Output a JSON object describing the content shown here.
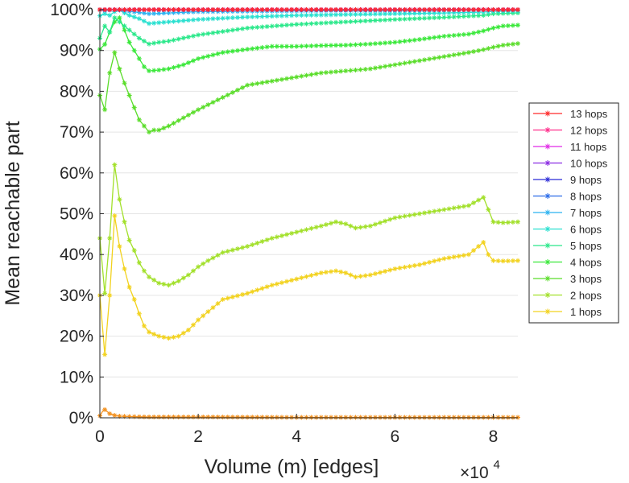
{
  "chart_data": {
    "type": "line",
    "title": "",
    "xlabel": "Volume (m) [edges]",
    "ylabel": "Mean reachable part",
    "x_multiplier_label": "×10",
    "x_multiplier_exponent": "4",
    "xlim": [
      0,
      85000
    ],
    "ylim": [
      0,
      100
    ],
    "x_ticks": [
      0,
      20000,
      40000,
      60000,
      80000
    ],
    "x_tick_labels": [
      "0",
      "2",
      "4",
      "6",
      "8"
    ],
    "y_ticks": [
      0,
      10,
      20,
      30,
      40,
      50,
      60,
      70,
      80,
      90,
      100
    ],
    "y_tick_labels": [
      "0%",
      "10%",
      "20%",
      "30%",
      "40%",
      "50%",
      "60%",
      "70%",
      "80%",
      "90%",
      "100%"
    ],
    "grid": true,
    "legend_position": "right",
    "marker": "asterisk",
    "series": [
      {
        "name": "13 hops",
        "color": "#ff2a2a",
        "points": [
          [
            0,
            100
          ],
          [
            85000,
            100
          ]
        ]
      },
      {
        "name": "12 hops",
        "color": "#ff2f8c",
        "points": [
          [
            0,
            100
          ],
          [
            85000,
            100
          ]
        ]
      },
      {
        "name": "11 hops",
        "color": "#e02ae6",
        "points": [
          [
            0,
            100
          ],
          [
            85000,
            100
          ]
        ]
      },
      {
        "name": "10 hops",
        "color": "#8a2be2",
        "points": [
          [
            0,
            100
          ],
          [
            85000,
            100
          ]
        ]
      },
      {
        "name": "9 hops",
        "color": "#2a2ad6",
        "points": [
          [
            0,
            100
          ],
          [
            85000,
            100
          ]
        ]
      },
      {
        "name": "8 hops",
        "color": "#2a6be8",
        "points": [
          [
            0,
            100
          ],
          [
            3000,
            100
          ],
          [
            85000,
            100
          ]
        ]
      },
      {
        "name": "7 hops",
        "color": "#2ab2f0",
        "points": [
          [
            0,
            100
          ],
          [
            1000,
            99.8
          ],
          [
            3000,
            100
          ],
          [
            6000,
            99.6
          ],
          [
            10000,
            99
          ],
          [
            14000,
            99.2
          ],
          [
            20000,
            99.5
          ],
          [
            30000,
            99.6
          ],
          [
            40000,
            99.7
          ],
          [
            50000,
            99.8
          ],
          [
            60000,
            99.8
          ],
          [
            70000,
            99.9
          ],
          [
            85000,
            100
          ]
        ]
      },
      {
        "name": "6 hops",
        "color": "#2ae0d0",
        "points": [
          [
            0,
            98.5
          ],
          [
            1000,
            99
          ],
          [
            2000,
            98.6
          ],
          [
            3000,
            99.5
          ],
          [
            4000,
            100
          ],
          [
            5000,
            99.2
          ],
          [
            6000,
            98.6
          ],
          [
            8000,
            97.8
          ],
          [
            10000,
            96.6
          ],
          [
            12000,
            96.8
          ],
          [
            16000,
            97.2
          ],
          [
            20000,
            97.6
          ],
          [
            30000,
            98.2
          ],
          [
            40000,
            98.6
          ],
          [
            50000,
            98.8
          ],
          [
            60000,
            99
          ],
          [
            70000,
            99.2
          ],
          [
            78000,
            99.4
          ],
          [
            80000,
            99.6
          ],
          [
            85000,
            99.7
          ]
        ]
      },
      {
        "name": "5 hops",
        "color": "#2ae88a",
        "points": [
          [
            0,
            93
          ],
          [
            1000,
            96
          ],
          [
            2000,
            94.5
          ],
          [
            3000,
            98
          ],
          [
            4000,
            97
          ],
          [
            5000,
            96
          ],
          [
            6000,
            95
          ],
          [
            8000,
            93
          ],
          [
            10000,
            91.6
          ],
          [
            12000,
            92
          ],
          [
            14000,
            92.3
          ],
          [
            20000,
            93.8
          ],
          [
            30000,
            95.5
          ],
          [
            40000,
            96.4
          ],
          [
            50000,
            97
          ],
          [
            60000,
            97.6
          ],
          [
            70000,
            98.1
          ],
          [
            78000,
            98.6
          ],
          [
            80000,
            99
          ],
          [
            85000,
            99.2
          ]
        ]
      },
      {
        "name": "4 hops",
        "color": "#3ae83a",
        "points": [
          [
            0,
            90.3
          ],
          [
            1000,
            91.5
          ],
          [
            2000,
            94.5
          ],
          [
            3000,
            97
          ],
          [
            4000,
            98
          ],
          [
            5000,
            95
          ],
          [
            6000,
            92
          ],
          [
            7000,
            90
          ],
          [
            8000,
            88
          ],
          [
            9000,
            86
          ],
          [
            10000,
            85
          ],
          [
            12000,
            85.2
          ],
          [
            14000,
            85.5
          ],
          [
            17000,
            86.5
          ],
          [
            20000,
            88
          ],
          [
            25000,
            89.5
          ],
          [
            30000,
            90.3
          ],
          [
            35000,
            91
          ],
          [
            40000,
            91
          ],
          [
            45000,
            91.2
          ],
          [
            50000,
            91.3
          ],
          [
            55000,
            91.6
          ],
          [
            60000,
            92
          ],
          [
            65000,
            92.7
          ],
          [
            70000,
            93.5
          ],
          [
            75000,
            94
          ],
          [
            78000,
            94.8
          ],
          [
            80000,
            95.5
          ],
          [
            82000,
            96
          ],
          [
            85000,
            96.2
          ]
        ]
      },
      {
        "name": "3 hops",
        "color": "#5add2a",
        "points": [
          [
            0,
            79
          ],
          [
            1000,
            75.5
          ],
          [
            2000,
            84.5
          ],
          [
            3000,
            89.5
          ],
          [
            4000,
            85.5
          ],
          [
            5000,
            82
          ],
          [
            6000,
            79
          ],
          [
            7000,
            76
          ],
          [
            8000,
            73
          ],
          [
            9000,
            71.5
          ],
          [
            10000,
            70
          ],
          [
            11000,
            70.5
          ],
          [
            12000,
            70.5
          ],
          [
            14000,
            71.5
          ],
          [
            17000,
            73.5
          ],
          [
            20000,
            75.5
          ],
          [
            25000,
            78.5
          ],
          [
            30000,
            81.5
          ],
          [
            35000,
            82.5
          ],
          [
            40000,
            83.5
          ],
          [
            45000,
            84.5
          ],
          [
            50000,
            85
          ],
          [
            55000,
            85.5
          ],
          [
            60000,
            86.5
          ],
          [
            65000,
            87.5
          ],
          [
            70000,
            88.5
          ],
          [
            75000,
            89.5
          ],
          [
            78000,
            90.2
          ],
          [
            80000,
            90.8
          ],
          [
            82000,
            91.3
          ],
          [
            85000,
            91.7
          ]
        ]
      },
      {
        "name": "2 hops",
        "color": "#a2e02a",
        "points": [
          [
            0,
            44
          ],
          [
            1000,
            30.5
          ],
          [
            2000,
            44
          ],
          [
            3000,
            62
          ],
          [
            4000,
            53.5
          ],
          [
            5000,
            48
          ],
          [
            6000,
            43.5
          ],
          [
            7000,
            41
          ],
          [
            8000,
            38
          ],
          [
            9000,
            36
          ],
          [
            10000,
            34.5
          ],
          [
            12000,
            33
          ],
          [
            14000,
            32.5
          ],
          [
            16000,
            33.5
          ],
          [
            18000,
            35
          ],
          [
            20000,
            37
          ],
          [
            22000,
            38.5
          ],
          [
            25000,
            40.5
          ],
          [
            30000,
            42
          ],
          [
            35000,
            44
          ],
          [
            40000,
            45.5
          ],
          [
            45000,
            47
          ],
          [
            48000,
            48
          ],
          [
            50000,
            47.5
          ],
          [
            52000,
            46.5
          ],
          [
            55000,
            47
          ],
          [
            60000,
            49
          ],
          [
            65000,
            50
          ],
          [
            70000,
            51
          ],
          [
            75000,
            52
          ],
          [
            78000,
            54
          ],
          [
            79000,
            51
          ],
          [
            80000,
            48
          ],
          [
            82000,
            47.8
          ],
          [
            85000,
            48
          ]
        ]
      },
      {
        "name": "1 hops",
        "color": "#f2d21e",
        "points": [
          [
            0,
            30
          ],
          [
            1000,
            15.5
          ],
          [
            2000,
            30
          ],
          [
            3000,
            49.5
          ],
          [
            4000,
            42
          ],
          [
            5000,
            36.5
          ],
          [
            6000,
            32
          ],
          [
            7000,
            29
          ],
          [
            8000,
            25.5
          ],
          [
            9000,
            22.5
          ],
          [
            10000,
            21
          ],
          [
            12000,
            20
          ],
          [
            14000,
            19.5
          ],
          [
            16000,
            20
          ],
          [
            18000,
            21.5
          ],
          [
            20000,
            24
          ],
          [
            22000,
            26
          ],
          [
            25000,
            29
          ],
          [
            30000,
            30.5
          ],
          [
            35000,
            32.5
          ],
          [
            40000,
            34
          ],
          [
            45000,
            35.5
          ],
          [
            48000,
            36
          ],
          [
            50000,
            35.5
          ],
          [
            52000,
            34.5
          ],
          [
            55000,
            35
          ],
          [
            60000,
            36.5
          ],
          [
            65000,
            37.5
          ],
          [
            70000,
            39
          ],
          [
            75000,
            40
          ],
          [
            78000,
            43
          ],
          [
            79000,
            40
          ],
          [
            80000,
            38.5
          ],
          [
            82000,
            38.4
          ],
          [
            85000,
            38.5
          ]
        ]
      },
      {
        "name": "",
        "color": "#f2901e",
        "points": [
          [
            0,
            0.5
          ],
          [
            500,
            1.5
          ],
          [
            1000,
            2
          ],
          [
            1500,
            1.5
          ],
          [
            2000,
            1
          ],
          [
            3000,
            0.6
          ],
          [
            4000,
            0.4
          ],
          [
            6000,
            0.3
          ],
          [
            10000,
            0.2
          ],
          [
            20000,
            0.2
          ],
          [
            40000,
            0.1
          ],
          [
            60000,
            0.1
          ],
          [
            85000,
            0.1
          ]
        ]
      }
    ]
  }
}
